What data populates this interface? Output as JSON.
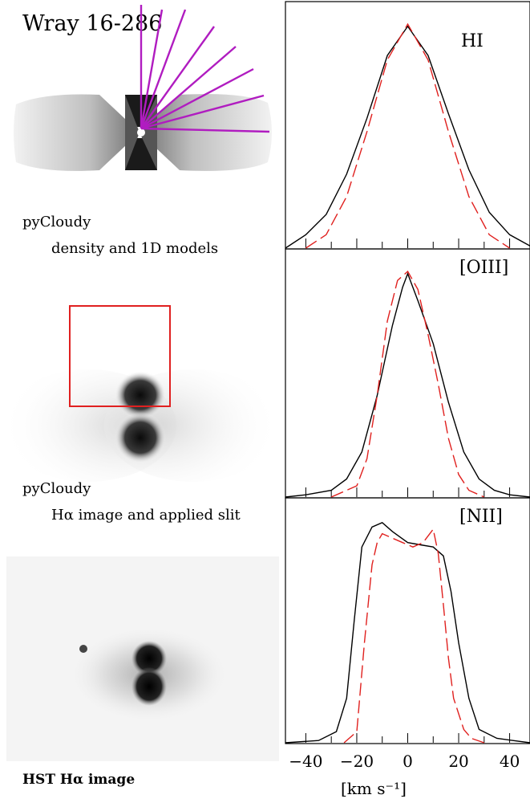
{
  "figure": {
    "title": "Wray 16-286",
    "model_label_top": "pyCloudy",
    "model_caption_top": "density and 1D models",
    "model_label_mid": "pyCloudy",
    "model_caption_mid": "Hα image and applied slit",
    "hst_caption": "HST Hα image"
  },
  "colors": {
    "observed": "#000000",
    "model": "#e0201e",
    "rays": "#b01cc0",
    "slit": "#e02020"
  },
  "chart_data": [
    {
      "type": "line",
      "title": "HI",
      "xlabel": "[km s⁻¹]",
      "ylabel": "",
      "xlim": [
        -48,
        48
      ],
      "xticks": [
        -40,
        -20,
        0,
        20,
        40
      ],
      "series": [
        {
          "style": "solid",
          "color": "#000000",
          "x": [
            -48,
            -40,
            -32,
            -24,
            -16,
            -8,
            0,
            8,
            16,
            24,
            32,
            40,
            48
          ],
          "y": [
            0.0,
            0.06,
            0.15,
            0.33,
            0.58,
            0.86,
            0.99,
            0.86,
            0.6,
            0.35,
            0.16,
            0.06,
            0.01
          ]
        },
        {
          "style": "dashed",
          "color": "#e0201e",
          "x": [
            -40,
            -32,
            -24,
            -16,
            -8,
            0,
            8,
            16,
            24,
            32,
            40
          ],
          "y": [
            0.0,
            0.06,
            0.23,
            0.52,
            0.84,
            1.0,
            0.84,
            0.52,
            0.23,
            0.06,
            0.0
          ]
        }
      ]
    },
    {
      "type": "line",
      "title": "[OIII]",
      "xlabel": "",
      "ylabel": "",
      "xlim": [
        -48,
        48
      ],
      "xticks": [
        -40,
        -20,
        0,
        20,
        40
      ],
      "series": [
        {
          "style": "solid",
          "color": "#000000",
          "x": [
            -48,
            -40,
            -30,
            -24,
            -18,
            -12,
            -6,
            -2,
            0,
            4,
            10,
            16,
            22,
            28,
            34,
            40,
            48
          ],
          "y": [
            0.0,
            0.01,
            0.03,
            0.08,
            0.2,
            0.45,
            0.76,
            0.93,
            0.99,
            0.87,
            0.68,
            0.42,
            0.2,
            0.08,
            0.03,
            0.01,
            0.0
          ]
        },
        {
          "style": "dashed",
          "color": "#e0201e",
          "x": [
            -30,
            -20,
            -16,
            -12,
            -8,
            -4,
            0,
            4,
            8,
            12,
            16,
            20,
            24,
            30
          ],
          "y": [
            0.0,
            0.05,
            0.17,
            0.45,
            0.78,
            0.96,
            1.0,
            0.92,
            0.72,
            0.5,
            0.26,
            0.1,
            0.03,
            0.0
          ]
        }
      ]
    },
    {
      "type": "line",
      "title": "[NII]",
      "xlabel": "[km s⁻¹]",
      "ylabel": "",
      "xlim": [
        -48,
        48
      ],
      "xticks": [
        -40,
        -20,
        0,
        20,
        40
      ],
      "series": [
        {
          "style": "solid",
          "color": "#000000",
          "x": [
            -48,
            -35,
            -28,
            -24,
            -21,
            -18,
            -14,
            -10,
            -6,
            0,
            5,
            10,
            14,
            17,
            20,
            24,
            28,
            35,
            48
          ],
          "y": [
            0.0,
            0.01,
            0.05,
            0.2,
            0.55,
            0.88,
            0.97,
            0.99,
            0.95,
            0.9,
            0.89,
            0.88,
            0.84,
            0.68,
            0.45,
            0.2,
            0.06,
            0.02,
            0.0
          ]
        },
        {
          "style": "dashed",
          "color": "#e0201e",
          "x": [
            -25,
            -20,
            -17,
            -14,
            -12,
            -10,
            -6,
            -2,
            2,
            6,
            10,
            12,
            14,
            16,
            18,
            22,
            25,
            30
          ],
          "y": [
            0.0,
            0.05,
            0.45,
            0.8,
            0.9,
            0.94,
            0.92,
            0.9,
            0.88,
            0.9,
            0.96,
            0.85,
            0.62,
            0.38,
            0.2,
            0.06,
            0.02,
            0.0
          ]
        }
      ]
    }
  ]
}
